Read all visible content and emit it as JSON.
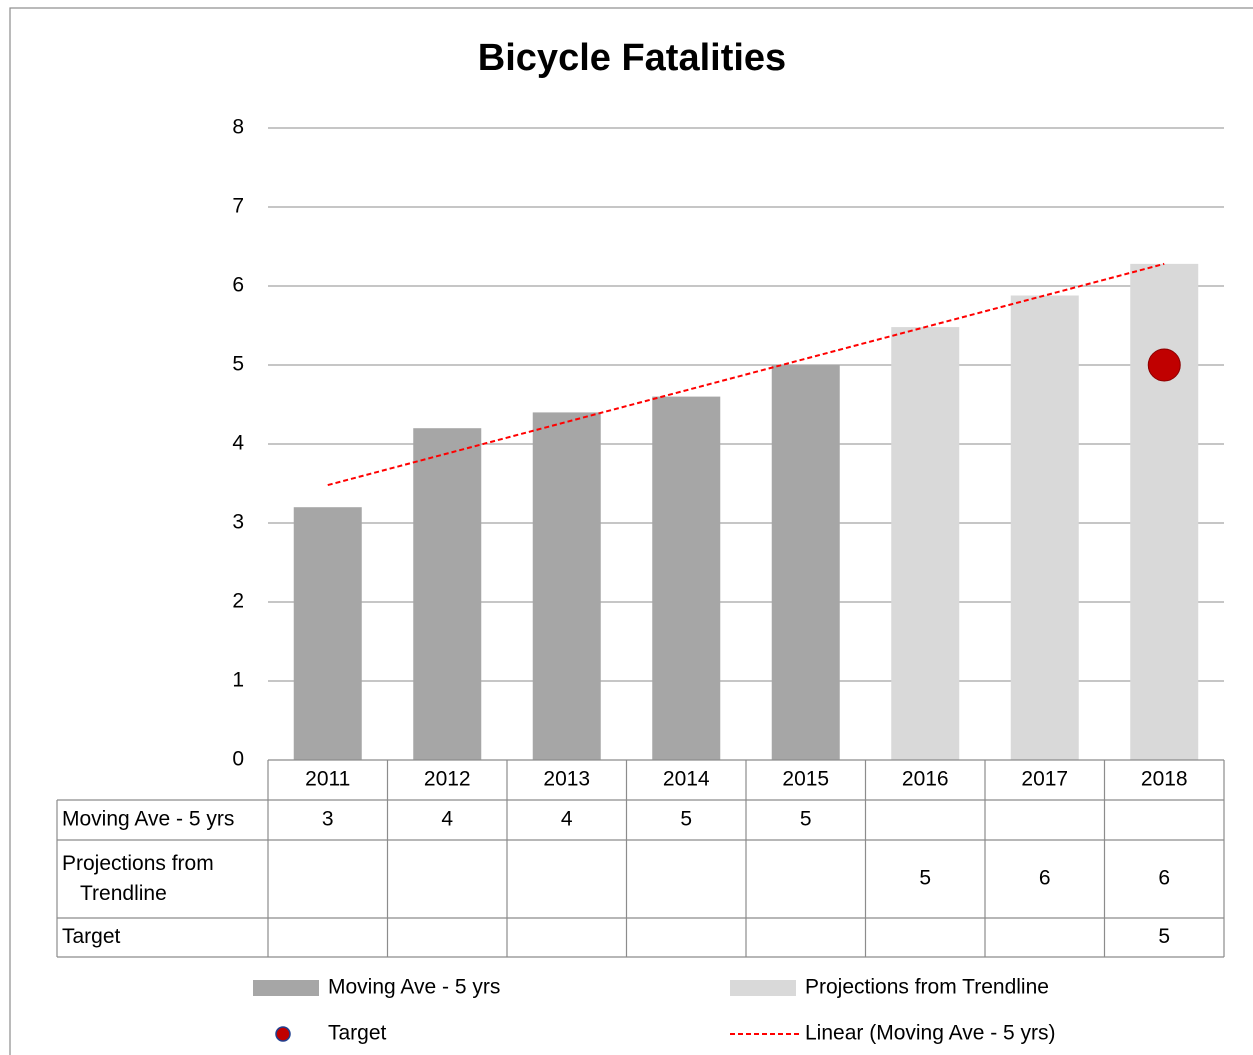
{
  "chart_data": {
    "type": "bar",
    "title": "Bicycle Fatalities",
    "categories": [
      "2011",
      "2012",
      "2013",
      "2014",
      "2015",
      "2016",
      "2017",
      "2018"
    ],
    "series": [
      {
        "name": "Moving Ave - 5 yrs",
        "type": "bar",
        "color": "#a6a6a6",
        "values": [
          3.2,
          4.2,
          4.4,
          4.6,
          5.0,
          null,
          null,
          null
        ],
        "value_labels": [
          "3",
          "4",
          "4",
          "5",
          "5",
          null,
          null,
          null
        ]
      },
      {
        "name": "Projections from Trendline",
        "type": "bar",
        "color": "#d9d9d9",
        "values": [
          null,
          null,
          null,
          null,
          null,
          5.48,
          5.88,
          6.28
        ],
        "value_labels": [
          null,
          null,
          null,
          null,
          null,
          "5",
          "6",
          "6"
        ]
      },
      {
        "name": "Target",
        "type": "scatter",
        "color": "#c00000",
        "values": [
          null,
          null,
          null,
          null,
          null,
          null,
          null,
          5
        ],
        "value_labels": [
          null,
          null,
          null,
          null,
          null,
          null,
          null,
          "5"
        ]
      },
      {
        "name": "Linear (Moving Ave - 5 yrs)",
        "type": "line",
        "color": "#ff0000",
        "dashed": true,
        "values": [
          3.48,
          3.88,
          4.28,
          4.68,
          5.08,
          5.48,
          5.88,
          6.28
        ]
      }
    ],
    "ylim": [
      0,
      8
    ],
    "yticks": [
      0,
      1,
      2,
      3,
      4,
      5,
      6,
      7,
      8
    ],
    "grid": true,
    "legend": "bottom"
  }
}
